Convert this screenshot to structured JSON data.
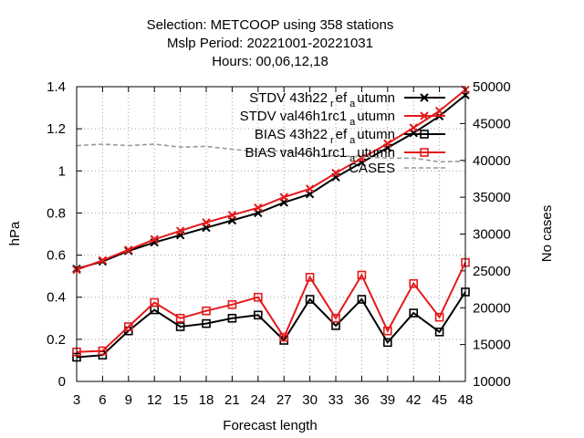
{
  "chart_data": {
    "type": "line",
    "title_lines": [
      "Selection: METCOOP using   358 stations",
      "Mslp   Period: 20221001-20221031",
      "Hours:  00,06,12,18"
    ],
    "xlabel": "Forecast length",
    "ylabel": "hPa",
    "y2label": "No cases",
    "x": [
      3,
      6,
      9,
      12,
      15,
      18,
      21,
      24,
      27,
      30,
      33,
      36,
      39,
      42,
      45,
      48
    ],
    "xlim": [
      3,
      48
    ],
    "ylim": [
      0,
      1.4
    ],
    "y2lim": [
      10000,
      50000
    ],
    "yticks": [
      "0",
      "0.2",
      "0.4",
      "0.6",
      "0.8",
      "1",
      "1.2",
      "1.4"
    ],
    "y2ticks": [
      "10000",
      "15000",
      "20000",
      "25000",
      "30000",
      "35000",
      "40000",
      "45000",
      "50000"
    ],
    "grid": true,
    "legend_position": "top-right",
    "series": [
      {
        "name": "STDV 43h22_ref_autumn",
        "legend": {
          "a": "STDV 43h22",
          "b": "r",
          "c": "ef",
          "d": "a",
          "e": "utumn"
        },
        "color": "#000000",
        "marker": "x",
        "axis": "y",
        "values": [
          0.535,
          0.57,
          0.62,
          0.66,
          0.695,
          0.73,
          0.765,
          0.8,
          0.85,
          0.89,
          0.97,
          1.04,
          1.11,
          1.18,
          1.26,
          1.36
        ]
      },
      {
        "name": "STDV val46h1rc1_autumn",
        "legend": {
          "a": "STDV val46h1rc1",
          "b": "a",
          "c": "utumn"
        },
        "color": "#e41a1c",
        "marker": "x",
        "axis": "y",
        "values": [
          0.53,
          0.575,
          0.625,
          0.675,
          0.715,
          0.755,
          0.79,
          0.825,
          0.875,
          0.915,
          0.99,
          1.06,
          1.13,
          1.205,
          1.285,
          1.385
        ]
      },
      {
        "name": "BIAS 43h22_ref_autumn",
        "legend": {
          "a": "BIAS 43h22",
          "b": "r",
          "c": "ef",
          "d": "a",
          "e": "utumn"
        },
        "color": "#000000",
        "marker": "square",
        "axis": "y",
        "values": [
          0.115,
          0.125,
          0.24,
          0.34,
          0.26,
          0.275,
          0.3,
          0.315,
          0.195,
          0.39,
          0.265,
          0.39,
          0.185,
          0.325,
          0.235,
          0.425
        ]
      },
      {
        "name": "BIAS val46h1rc1_autumn",
        "legend": {
          "a": "BIAS val46h1rc1",
          "b": "a",
          "c": "utumn"
        },
        "color": "#e41a1c",
        "marker": "square",
        "axis": "y",
        "values": [
          0.14,
          0.145,
          0.26,
          0.375,
          0.3,
          0.335,
          0.365,
          0.4,
          0.21,
          0.495,
          0.3,
          0.505,
          0.24,
          0.465,
          0.305,
          0.565
        ]
      },
      {
        "name": "CASES",
        "legend": {
          "a": "CASES"
        },
        "color": "#999999",
        "marker": "none",
        "dashed": true,
        "axis": "y2",
        "values": [
          42000,
          42200,
          42000,
          42200,
          41800,
          41900,
          41500,
          41200,
          41300,
          40800,
          40600,
          40500,
          40300,
          40300,
          39800,
          39900
        ]
      }
    ]
  }
}
